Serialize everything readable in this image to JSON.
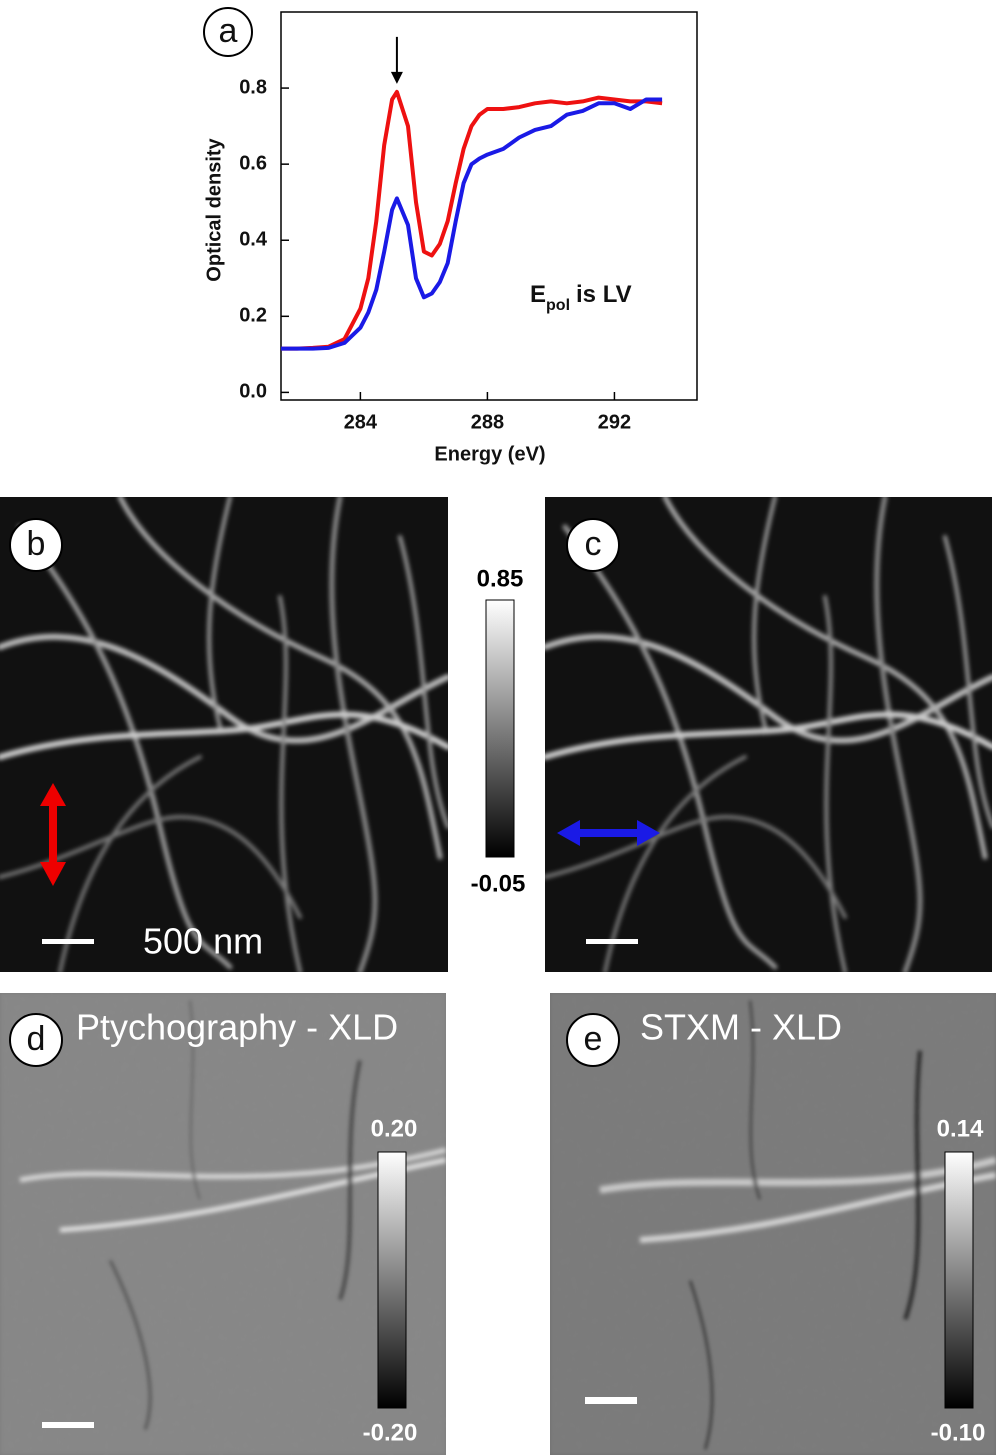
{
  "chart_data": {
    "type": "line",
    "panel_label": "a",
    "x_label": "Energy (eV)",
    "y_label": "Optical density",
    "annotation": {
      "main": "E",
      "subscript": "pol",
      "rest": "is LV"
    },
    "x": [
      281.5,
      282,
      282.5,
      283,
      283.5,
      284,
      284.25,
      284.5,
      284.75,
      285,
      285.15,
      285.5,
      285.75,
      286,
      286.25,
      286.5,
      286.75,
      287,
      287.25,
      287.5,
      287.75,
      288,
      288.5,
      289,
      289.5,
      290,
      290.5,
      291,
      291.5,
      292,
      292.5,
      293,
      293.5
    ],
    "series": [
      {
        "color": "#ee1111",
        "values": [
          0.115,
          0.115,
          0.117,
          0.12,
          0.14,
          0.22,
          0.3,
          0.45,
          0.65,
          0.77,
          0.79,
          0.7,
          0.5,
          0.37,
          0.36,
          0.39,
          0.45,
          0.55,
          0.64,
          0.7,
          0.73,
          0.745,
          0.745,
          0.75,
          0.76,
          0.765,
          0.76,
          0.765,
          0.775,
          0.77,
          0.765,
          0.765,
          0.76
        ]
      },
      {
        "color": "#1a1ae6",
        "values": [
          0.115,
          0.115,
          0.115,
          0.117,
          0.13,
          0.17,
          0.21,
          0.27,
          0.37,
          0.48,
          0.51,
          0.44,
          0.3,
          0.25,
          0.26,
          0.29,
          0.34,
          0.45,
          0.55,
          0.6,
          0.615,
          0.625,
          0.64,
          0.67,
          0.69,
          0.7,
          0.73,
          0.74,
          0.76,
          0.76,
          0.745,
          0.77,
          0.77
        ]
      }
    ],
    "xlim": [
      281.5,
      294.6
    ],
    "xticks": [
      284,
      288,
      292
    ],
    "ylim": [
      -0.02,
      1.0
    ],
    "yticks": [
      {
        "value": 0,
        "label": "0.0"
      },
      0.2,
      0.4,
      0.6,
      0.8
    ]
  },
  "panels": {
    "b": {
      "label": "b",
      "scale_bar": "500 nm",
      "colorbar": {
        "max": "0.85",
        "min": "-0.05"
      }
    },
    "c": {
      "label": "c"
    },
    "d": {
      "label": "d",
      "title": "Ptychography - XLD",
      "colorbar": {
        "max": "0.20",
        "min": "-0.20"
      }
    },
    "e": {
      "label": "e",
      "title": "STXM - XLD",
      "colorbar": {
        "max": "0.14",
        "min": "-0.10"
      }
    }
  }
}
